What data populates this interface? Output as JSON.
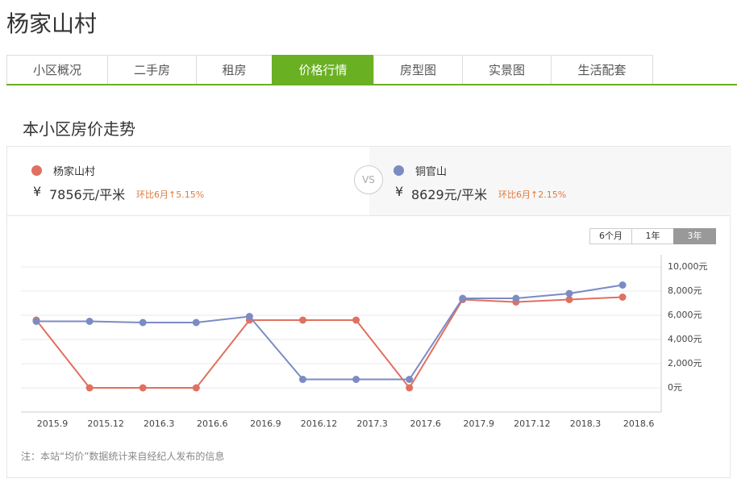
{
  "header": {
    "title": "杨家山村"
  },
  "tabs": [
    {
      "label": "小区概况"
    },
    {
      "label": "二手房"
    },
    {
      "label": "租房"
    },
    {
      "label": "价格行情",
      "active": true
    },
    {
      "label": "房型图"
    },
    {
      "label": "实景图"
    },
    {
      "label": "生活配套"
    }
  ],
  "section_title": "本小区房价走势",
  "compare": [
    {
      "name": "杨家山村",
      "currency": "¥",
      "price": "7856元/平米",
      "change": "环比6月↑5.15%",
      "color": "#e07060"
    },
    {
      "name": "铜官山",
      "currency": "¥",
      "price": "8629元/平米",
      "change": "环比6月↑2.15%",
      "color": "#7b8bc4"
    }
  ],
  "vs": "VS",
  "periods": [
    {
      "label": "6个月"
    },
    {
      "label": "1年"
    },
    {
      "label": "3年",
      "active": true
    }
  ],
  "note": "注：本站“均价”数据统计来自经纪人发布的信息",
  "chart_data": {
    "type": "line",
    "categories": [
      "2015.9",
      "2015.12",
      "2016.3",
      "2016.6",
      "2016.9",
      "2016.12",
      "2017.3",
      "2017.6",
      "2017.9",
      "2017.12",
      "2018.3",
      "2018.6"
    ],
    "series": [
      {
        "name": "杨家山村",
        "color": "#e07060",
        "values": [
          5600,
          0,
          0,
          0,
          5600,
          5600,
          5600,
          0,
          7300,
          7100,
          7300,
          7500
        ]
      },
      {
        "name": "铜官山",
        "color": "#7b8bc4",
        "values": [
          5500,
          5500,
          5400,
          5400,
          5900,
          700,
          700,
          700,
          7400,
          7400,
          7800,
          8500
        ]
      }
    ],
    "ylim": [
      -2000,
      11000
    ],
    "yticks": [
      {
        "value": 0,
        "label": "0元"
      },
      {
        "value": 2000,
        "label": "2,000元"
      },
      {
        "value": 4000,
        "label": "4,000元"
      },
      {
        "value": 6000,
        "label": "6,000元"
      },
      {
        "value": 8000,
        "label": "8,000元"
      },
      {
        "value": 10000,
        "label": "10,000元"
      }
    ],
    "grid": true
  }
}
